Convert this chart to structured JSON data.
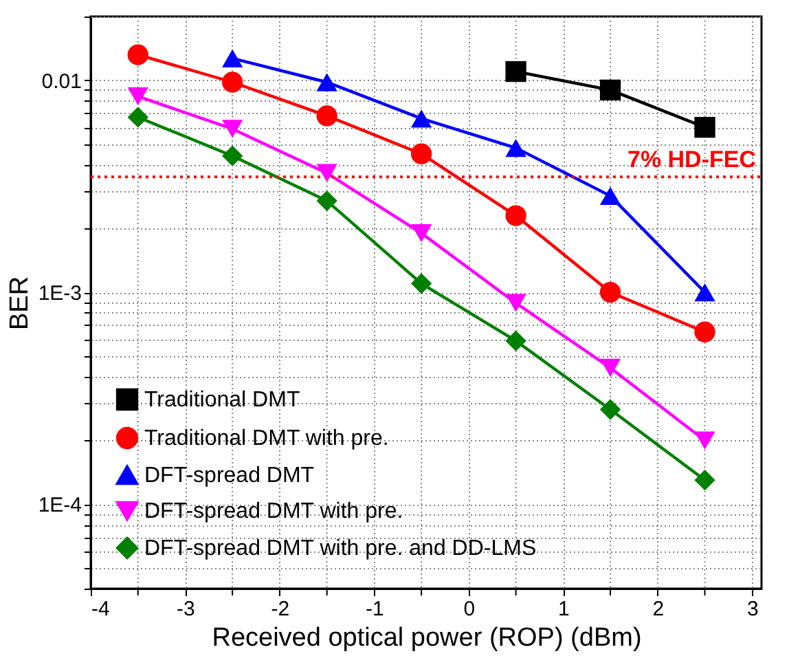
{
  "chart_data": {
    "type": "line",
    "xlabel": "Received optical power (ROP) (dBm)",
    "ylabel": "BER",
    "log": "y",
    "xlim": [
      -4,
      3.1
    ],
    "ylim": [
      4e-05,
      0.02
    ],
    "xticks": [
      -4,
      {
        "value": -3.5,
        "label": null
      },
      -3,
      {
        "value": -2.5,
        "label": null
      },
      -2,
      {
        "value": -1.5,
        "label": null
      },
      -1,
      {
        "value": -0.5,
        "label": null
      },
      0,
      {
        "value": 0.5,
        "label": null
      },
      1,
      {
        "value": 1.5,
        "label": null
      },
      2,
      {
        "value": 2.5,
        "label": null
      },
      3
    ],
    "yticks": [
      {
        "value": 4e-05,
        "label": null
      },
      {
        "value": 5e-05,
        "label": null
      },
      {
        "value": 6e-05,
        "label": null
      },
      {
        "value": 7e-05,
        "label": null
      },
      {
        "value": 8e-05,
        "label": null
      },
      {
        "value": 9e-05,
        "label": null
      },
      {
        "value": 0.0001,
        "label": "1E-4"
      },
      {
        "value": 0.0002,
        "label": null
      },
      {
        "value": 0.0003,
        "label": null
      },
      {
        "value": 0.0004,
        "label": null
      },
      {
        "value": 0.0005,
        "label": null
      },
      {
        "value": 0.0006,
        "label": null
      },
      {
        "value": 0.0007,
        "label": null
      },
      {
        "value": 0.0008,
        "label": null
      },
      {
        "value": 0.0009,
        "label": null
      },
      {
        "value": 0.001,
        "label": "1E-3"
      },
      {
        "value": 0.002,
        "label": null
      },
      {
        "value": 0.003,
        "label": null
      },
      {
        "value": 0.004,
        "label": null
      },
      {
        "value": 0.005,
        "label": null
      },
      {
        "value": 0.006,
        "label": null
      },
      {
        "value": 0.007,
        "label": null
      },
      {
        "value": 0.008,
        "label": null
      },
      {
        "value": 0.009,
        "label": null
      },
      {
        "value": 0.01,
        "label": "0.01"
      },
      {
        "value": 0.02,
        "label": null
      }
    ],
    "grid": true,
    "legend": "bottom left",
    "line_style": "solid",
    "ref_lines": [
      {
        "axis": "y",
        "value": 0.0035,
        "label": "7% HD-FEC",
        "color": "#ff0000",
        "line_style": "dotted"
      }
    ],
    "series": [
      {
        "name": "Traditional DMT",
        "color": "#000000",
        "marker": "square",
        "x": [
          0.5,
          1.5,
          2.5
        ],
        "values": [
          0.011,
          0.009,
          0.006
        ]
      },
      {
        "name": "Traditional DMT with pre.",
        "color": "#ff0000",
        "marker": "circle",
        "x": [
          -3.5,
          -2.5,
          -1.5,
          -0.5,
          0.5,
          1.5,
          2.5
        ],
        "values": [
          0.0132,
          0.0098,
          0.0068,
          0.0045,
          0.0023,
          0.001,
          0.00065
        ]
      },
      {
        "name": "DFT-spread DMT",
        "color": "#0000ff",
        "marker": "triangle",
        "x": [
          -2.5,
          -1.5,
          -0.5,
          0.5,
          1.5,
          2.5
        ],
        "values": [
          0.0127,
          0.0098,
          0.0066,
          0.0048,
          0.00285,
          0.001
        ]
      },
      {
        "name": "DFT-spread DMT with pre.",
        "color": "#ff00ff",
        "marker": "triangle-down",
        "x": [
          -3.5,
          -2.5,
          -1.5,
          -0.5,
          0.5,
          1.5,
          2.5
        ],
        "values": [
          0.0084,
          0.0059,
          0.00365,
          0.0019,
          0.00089,
          0.00044,
          0.0002
        ]
      },
      {
        "name": "DFT-spread DMT with pre. and DD-LMS",
        "color": "#008000",
        "marker": "diamond",
        "x": [
          -3.5,
          -2.5,
          -1.5,
          -0.5,
          0.5,
          1.5,
          2.5
        ],
        "values": [
          0.0067,
          0.0044,
          0.0027,
          0.0011,
          0.00059,
          0.00028,
          0.00013
        ]
      }
    ]
  }
}
